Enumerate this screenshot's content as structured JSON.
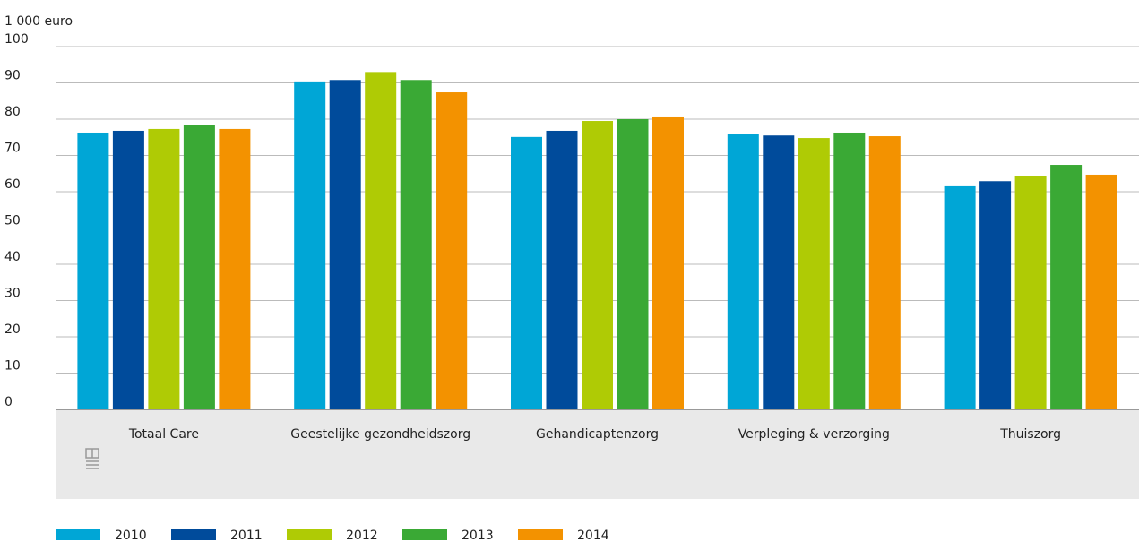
{
  "chart_data": {
    "type": "bar",
    "y_axis_label": "1 000 euro",
    "categories": [
      "Totaal Care",
      "Geestelijke gezondheidszorg",
      "Gehandicaptenzorg",
      "Verpleging & verzorging",
      "Thuiszorg"
    ],
    "series": [
      {
        "name": "2010",
        "color": "#00a6d6",
        "values": [
          76.3,
          90.4,
          75.1,
          75.8,
          61.5
        ]
      },
      {
        "name": "2011",
        "color": "#004b9b",
        "values": [
          76.8,
          90.8,
          76.8,
          75.5,
          62.9
        ]
      },
      {
        "name": "2012",
        "color": "#afcb05",
        "values": [
          77.3,
          93.0,
          79.5,
          74.8,
          64.4
        ]
      },
      {
        "name": "2013",
        "color": "#3aa935",
        "values": [
          78.3,
          90.8,
          80.0,
          76.3,
          67.4
        ]
      },
      {
        "name": "2014",
        "color": "#f39200",
        "values": [
          77.3,
          87.4,
          80.5,
          75.3,
          64.7
        ]
      }
    ],
    "ylim": [
      0,
      100
    ],
    "yticks": [
      0,
      10,
      20,
      30,
      40,
      50,
      60,
      70,
      80,
      90,
      100
    ],
    "grid": true,
    "legend": "bottom"
  }
}
